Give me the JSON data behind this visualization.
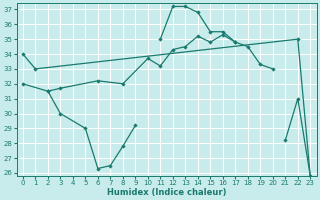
{
  "xlabel": "Humidex (Indice chaleur)",
  "bg_color": "#c8ecec",
  "line_color": "#1a7a6e",
  "grid_color": "#ffffff",
  "xlim": [
    -0.5,
    23.5
  ],
  "ylim": [
    25.8,
    37.4
  ],
  "yticks": [
    26,
    27,
    28,
    29,
    30,
    31,
    32,
    33,
    34,
    35,
    36,
    37
  ],
  "xticks": [
    0,
    1,
    2,
    3,
    4,
    5,
    6,
    7,
    8,
    9,
    10,
    11,
    12,
    13,
    14,
    15,
    16,
    17,
    18,
    19,
    20,
    21,
    22,
    23
  ],
  "line1_x": [
    0,
    1,
    22,
    23
  ],
  "line1_y": [
    34,
    33,
    35,
    25.8
  ],
  "line2_x": [
    11,
    12,
    13,
    14,
    15,
    16,
    17
  ],
  "line2_y": [
    35.0,
    37.2,
    37.2,
    36.8,
    35.5,
    35.5,
    34.8
  ],
  "line3_x": [
    2,
    3,
    5,
    6,
    7,
    8,
    9,
    21,
    22,
    23
  ],
  "line3_y": [
    31.5,
    30.0,
    29.0,
    26.3,
    26.5,
    27.8,
    29.2,
    28.2,
    31.0,
    25.8
  ],
  "line4_x": [
    0,
    2,
    3,
    6,
    8,
    10,
    11,
    12,
    13,
    14,
    15,
    16,
    17,
    18,
    19,
    20
  ],
  "line4_y": [
    32.0,
    31.5,
    31.7,
    32.2,
    32.0,
    33.7,
    33.2,
    34.3,
    34.5,
    35.2,
    34.8,
    35.3,
    34.8,
    34.5,
    33.3,
    33.0
  ]
}
